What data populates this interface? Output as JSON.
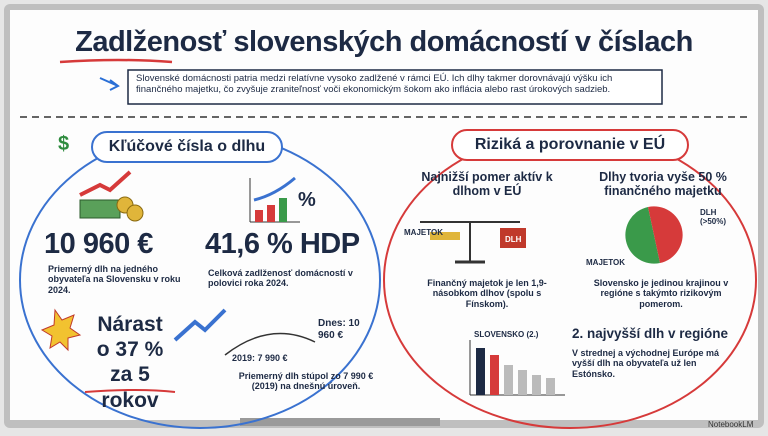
{
  "header": {
    "title": "Zadlženosť slovenských domácností v číslach",
    "intro": "Slovenské domácnosti patria medzi relatívne vysoko zadlžené v rámci EÚ. Ich dlhy takmer dorovnávajú výšku ich finančného majetku, čo zvyšuje zraniteľnosť voči ekonomickým šokom ako inflácia alebo rast úrokových sadzieb."
  },
  "left": {
    "title": "Kľúčové čísla o dlhu",
    "stats": [
      {
        "value": "10 960 €",
        "text": "Priemerný dlh na jedného obyvateľa na Slovensku v roku 2024."
      },
      {
        "value": "41,6 % HDP",
        "text": "Celková zadlženosť domácností v polovici roka 2024."
      }
    ],
    "growth": {
      "headline": [
        "Nárast",
        "o 37 %",
        "za 5 rokov"
      ],
      "start": "2019: 7 990 €",
      "end": "Dnes: 10 960 €",
      "text": "Priemerný dlh stúpol zo 7 990 € (2019) na dnešnú úroveň."
    }
  },
  "right": {
    "title": "Riziká a porovnanie v EÚ",
    "items": [
      {
        "title": "Najnižší pomer aktív k dlhom v EÚ",
        "labels": [
          "MAJETOK",
          "DLH"
        ],
        "text": "Finančný majetok je len 1,9-násobkom dlhov (spolu s Fínskom)."
      },
      {
        "title": "Dlhy tvoria vyše 50 % finančného majetku",
        "labels": [
          "DLH (>50%)",
          "MAJETOK"
        ],
        "text": "Slovensko je jedinou krajinou v regióne s takýmto rizikovým pomerom."
      },
      {
        "title": "2. najvyšší dlh v regióne",
        "labels": [
          "SLOVENSKO (2.)"
        ],
        "text": "V strednej a východnej Európe má vyšší dlh na obyvateľa už len Estónsko."
      }
    ]
  },
  "footer": "NotebookLM"
}
